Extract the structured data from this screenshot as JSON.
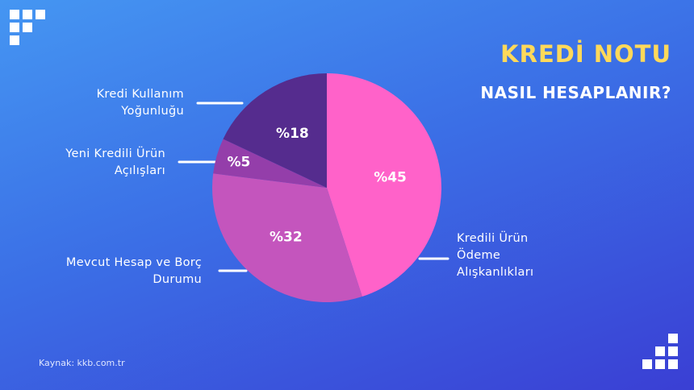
{
  "chart_data": {
    "type": "pie",
    "title": "KREDİ NOTU",
    "subtitle": "NASIL HESAPLANIR?",
    "categories": [
      "Kredili Ürün Ödeme Alışkanlıkları",
      "Mevcut Hesap ve Borç Durumu",
      "Yeni Kredili Ürün Açılışları",
      "Kredi Kullanım Yoğunluğu"
    ],
    "values": [
      45,
      32,
      5,
      18
    ],
    "value_labels": [
      "%45",
      "%32",
      "%5",
      "%18"
    ],
    "colors": [
      "#ff62c9",
      "#c455bd",
      "#943eaa",
      "#552c8e"
    ],
    "source": "Kaynak: kkb.com.tr"
  }
}
